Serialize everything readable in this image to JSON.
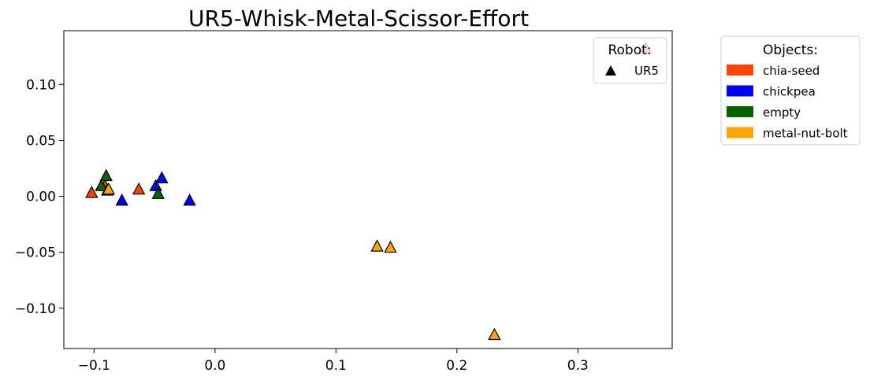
{
  "chart_data": {
    "type": "scatter",
    "title": "UR5-Whisk-Metal-Scissor-Effort",
    "xlabel": "",
    "ylabel": "",
    "xlim": [
      -0.125,
      0.378
    ],
    "ylim": [
      -0.136,
      0.148
    ],
    "xticks": [
      -0.1,
      0.0,
      0.1,
      0.2,
      0.3
    ],
    "xtick_labels": [
      "−0.1",
      "0.0",
      "0.1",
      "0.2",
      "0.3"
    ],
    "yticks": [
      -0.1,
      -0.05,
      0.0,
      0.05,
      0.1
    ],
    "ytick_labels": [
      "−0.10",
      "−0.05",
      "0.00",
      "0.05",
      "0.10"
    ],
    "grid": false,
    "marker": "triangle",
    "series": [
      {
        "name": "chia-seed",
        "color": "#FF4500",
        "points": [
          [
            -0.102,
            0.003
          ],
          [
            -0.063,
            0.006
          ],
          [
            -0.091,
            0.009
          ],
          [
            0.356,
            0.132
          ]
        ]
      },
      {
        "name": "chickpea",
        "color": "#0000FF",
        "points": [
          [
            -0.077,
            -0.004
          ],
          [
            -0.049,
            0.009
          ],
          [
            -0.044,
            0.016
          ],
          [
            -0.021,
            -0.004
          ]
        ]
      },
      {
        "name": "empty",
        "color": "#006400",
        "points": [
          [
            -0.09,
            0.018
          ],
          [
            -0.094,
            0.009
          ],
          [
            -0.089,
            0.005
          ],
          [
            -0.047,
            0.002
          ]
        ]
      },
      {
        "name": "metal-nut-bolt",
        "color": "#FFA500",
        "points": [
          [
            -0.088,
            0.006
          ],
          [
            0.134,
            -0.045
          ],
          [
            0.145,
            -0.046
          ],
          [
            0.231,
            -0.124
          ]
        ]
      }
    ],
    "legends": {
      "robot": {
        "title": "Robot:",
        "placement": "top-right inside plot",
        "items": [
          {
            "label": "UR5",
            "icon": "triangle-icon"
          }
        ]
      },
      "objects": {
        "title": "Objects:",
        "placement": "outside right",
        "items": [
          "chia-seed",
          "chickpea",
          "empty",
          "metal-nut-bolt"
        ]
      }
    }
  }
}
